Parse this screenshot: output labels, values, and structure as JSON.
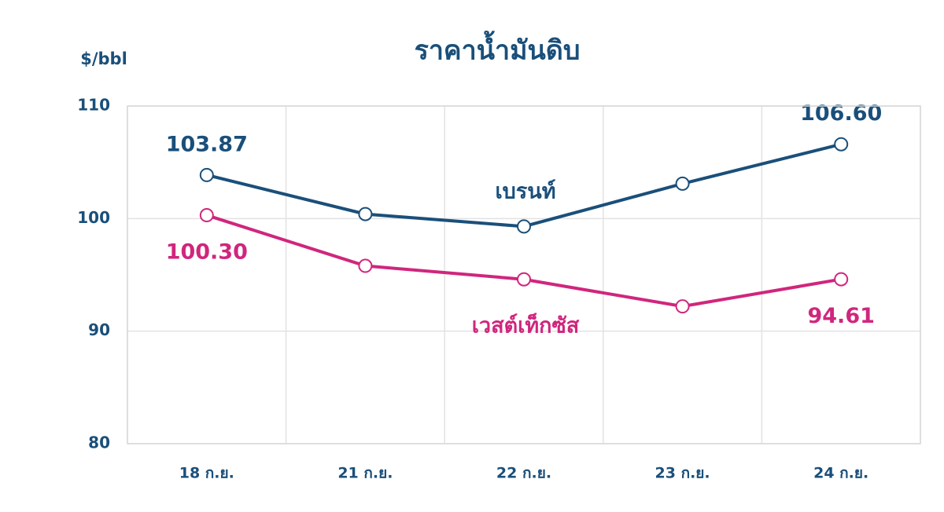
{
  "chart_data": {
    "type": "line",
    "title": "ราคาน้ำมันดิบ",
    "y_label": "$/bbl",
    "categories": [
      "18 ก.ย.",
      "21 ก.ย.",
      "22 ก.ย.",
      "23 ก.ย.",
      "24 ก.ย."
    ],
    "series": [
      {
        "name": "เบรนท์",
        "color": "#1a4f7a",
        "values": [
          103.87,
          100.4,
          99.3,
          103.1,
          106.6
        ],
        "value_labels": [
          "103.87",
          null,
          null,
          null,
          "106.60"
        ]
      },
      {
        "name": "เวสต์เท็กซัส",
        "color": "#d0267d",
        "values": [
          100.3,
          95.8,
          94.6,
          92.2,
          94.61
        ],
        "value_labels": [
          "100.30",
          null,
          null,
          null,
          "94.61"
        ]
      }
    ],
    "ylim": [
      80,
      110
    ],
    "yticks": [
      80,
      90,
      100,
      110
    ],
    "grid": true
  }
}
